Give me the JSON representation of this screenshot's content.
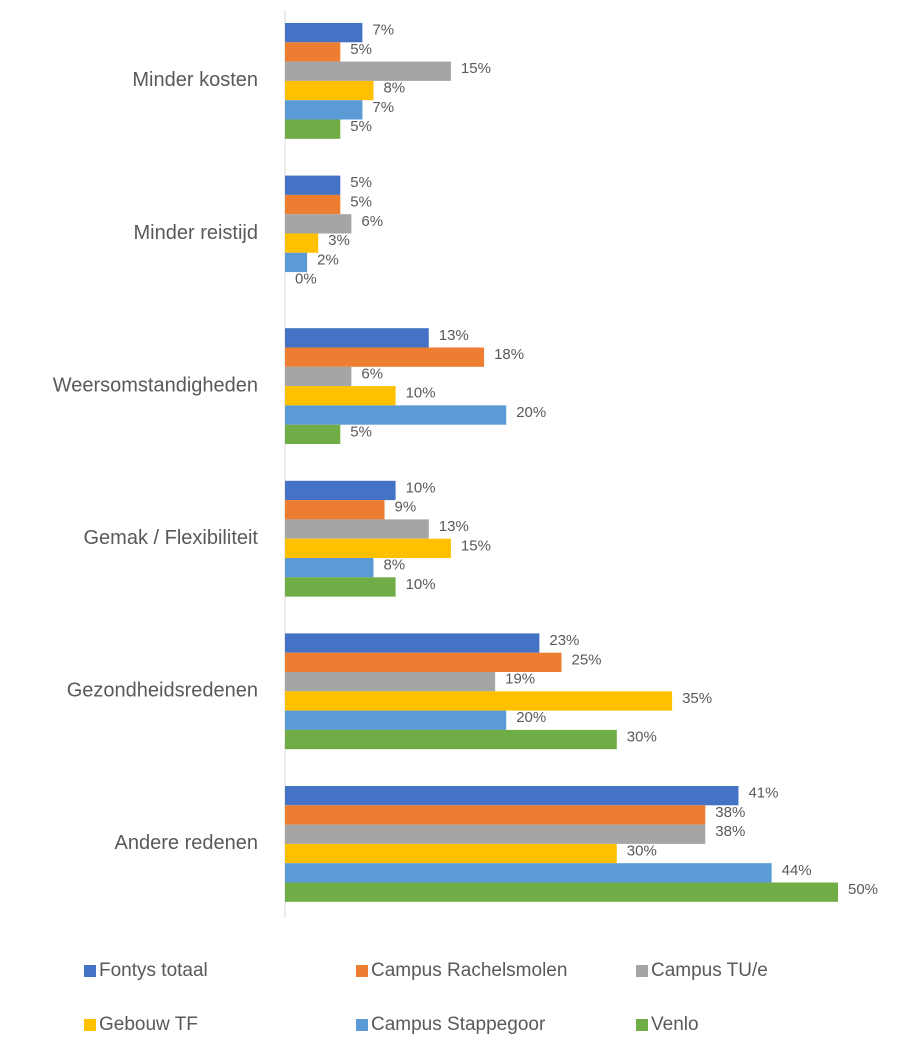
{
  "chart_data": {
    "type": "bar",
    "orientation": "horizontal",
    "categories": [
      "Minder kosten",
      "Minder reistijd",
      "Weersomstandigheden",
      "Gemak / Flexibiliteit",
      "Gezondheidsredenen",
      "Andere redenen"
    ],
    "series": [
      {
        "name": "Fontys totaal",
        "color": "#4472c4",
        "values": [
          7,
          5,
          13,
          10,
          23,
          41
        ],
        "value_labels": [
          "7%",
          "5%",
          "13%",
          "10%",
          "23%",
          "41%"
        ]
      },
      {
        "name": "Campus Rachelsmolen",
        "color": "#ed7d31",
        "values": [
          5,
          5,
          18,
          9,
          25,
          38
        ],
        "value_labels": [
          "5%",
          "5%",
          "18%",
          "9%",
          "25%",
          "38%"
        ]
      },
      {
        "name": "Campus TU/e",
        "color": "#a5a5a5",
        "values": [
          15,
          6,
          6,
          13,
          19,
          38
        ],
        "value_labels": [
          "15%",
          "6%",
          "6%",
          "13%",
          "19%",
          "38%"
        ]
      },
      {
        "name": "Gebouw TF",
        "color": "#ffc000",
        "values": [
          8,
          3,
          10,
          15,
          35,
          30
        ],
        "value_labels": [
          "8%",
          "3%",
          "10%",
          "15%",
          "35%",
          "30%"
        ]
      },
      {
        "name": "Campus Stappegoor",
        "color": "#5b9bd5",
        "values": [
          7,
          2,
          20,
          8,
          20,
          44
        ],
        "value_labels": [
          "7%",
          "2%",
          "20%",
          "8%",
          "20%",
          "44%"
        ]
      },
      {
        "name": "Venlo",
        "color": "#70ad47",
        "values": [
          5,
          0,
          5,
          10,
          30,
          50
        ],
        "value_labels": [
          "5%",
          "0%",
          "5%",
          "10%",
          "30%",
          "50%"
        ]
      }
    ],
    "legend": "bottom"
  }
}
